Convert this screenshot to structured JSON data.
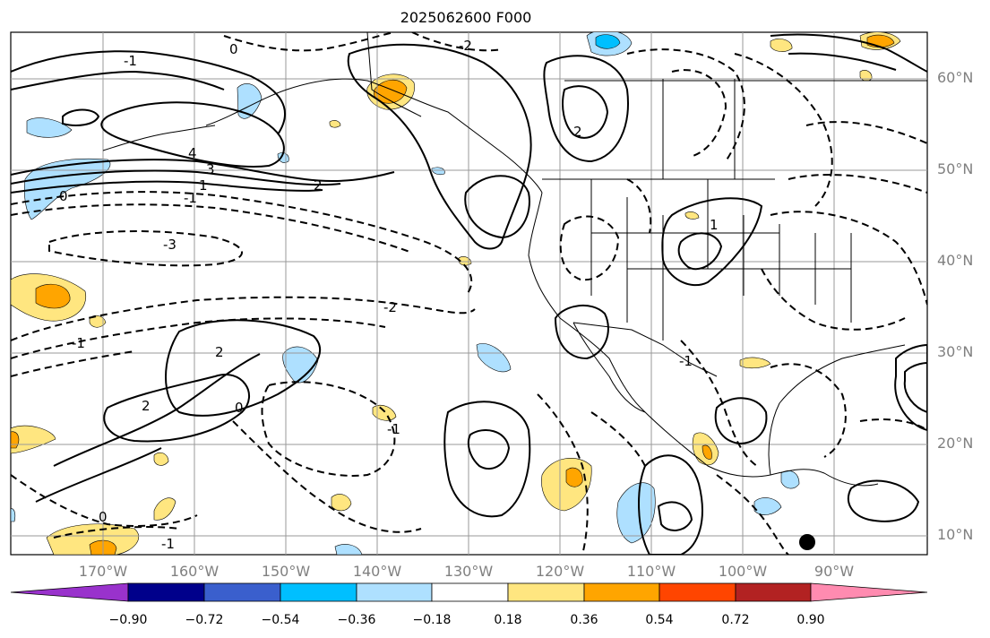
{
  "title": "2025062600 F000",
  "lat_labels": [
    "60°N",
    "50°N",
    "40°N",
    "30°N",
    "20°N",
    "10°N"
  ],
  "lon_labels": [
    "170°W",
    "160°W",
    "150°W",
    "140°W",
    "130°W",
    "120°W",
    "110°W",
    "100°W",
    "90°W"
  ],
  "colorbar": {
    "tick_labels": [
      "−0.90",
      "−0.72",
      "−0.54",
      "−0.36",
      "−0.18",
      "0.18",
      "0.36",
      "0.54",
      "0.72",
      "0.90"
    ],
    "colors": [
      "#9932cc",
      "#00008b",
      "#3a5fcd",
      "#00bfff",
      "#aee0ff",
      "#ffffff",
      "#ffe680",
      "#ffa500",
      "#ff4500",
      "#b22222",
      "#ff8bb0"
    ]
  },
  "contour_labels": [
    "0",
    "-1",
    "-2",
    "-3",
    "4",
    "3",
    "2",
    "1",
    "0",
    "2",
    "-1",
    "-2",
    "2",
    "-1",
    "2",
    "1",
    "-1",
    "-1",
    "0",
    "0",
    "-1"
  ],
  "colors": {
    "light_blue": "#aee0ff",
    "blue": "#00bfff",
    "light_yellow": "#ffe680",
    "orange": "#ffa500",
    "dark_orange": "#ff8c00",
    "grid": "#999999"
  }
}
